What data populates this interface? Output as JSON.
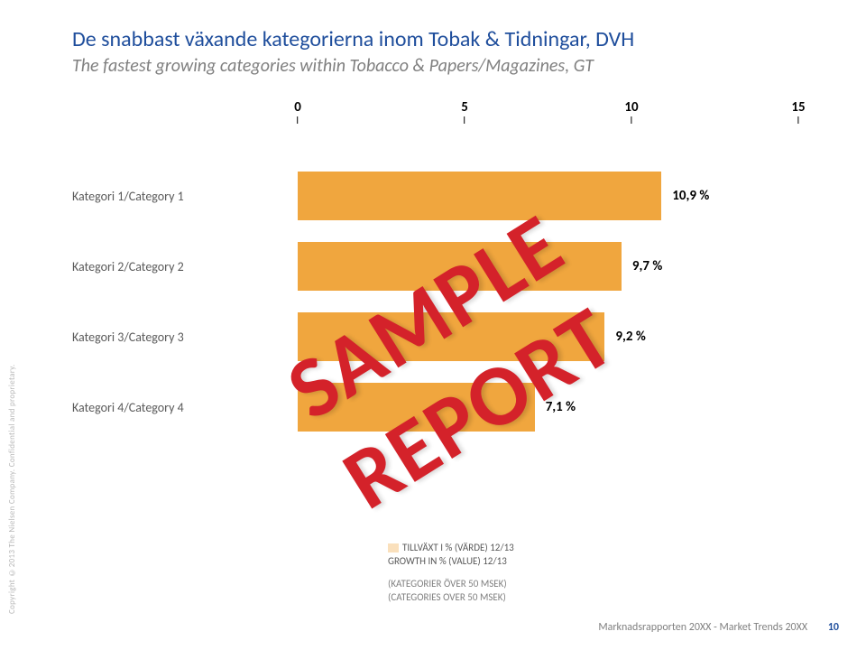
{
  "copyright": "Copyright ©2013 The Nielsen Company. Confidential and proprietary.",
  "title": "De snabbast växande kategorierna inom Tobak & Tidningar, DVH",
  "subtitle": "The fastest growing categories within Tobacco & Papers/Magazines, GT",
  "watermark": "SAMPLE REPORT",
  "chart": {
    "type": "bar",
    "x_min": 0,
    "x_max": 15,
    "ticks": [
      0,
      5,
      10,
      15
    ],
    "bar_color": "#f0a63e",
    "value_suffix": " %",
    "categories": [
      {
        "label": "Kategori 1/Category 1",
        "value": 10.9
      },
      {
        "label": "Kategori 2/Category 2",
        "value": 9.7
      },
      {
        "label": "Kategori 3/Category 3",
        "value": 9.2
      },
      {
        "label": "Kategori 4/Category 4",
        "value": 7.1
      }
    ],
    "label_fontsize": 14,
    "value_fontsize": 15,
    "background_color": "#ffffff"
  },
  "legend": {
    "line1": "TILLVÄXT I % (VÄRDE) 12/13",
    "line2": "GROWTH IN % (VALUE) 12/13",
    "line3": "(KATEGORIER ÖVER 50 MSEK)",
    "line4": "(CATEGORIES OVER 50 MSEK)"
  },
  "footer": {
    "text": "Marknadsrapporten 20XX  -  Market Trends 20XX",
    "page": "10"
  }
}
